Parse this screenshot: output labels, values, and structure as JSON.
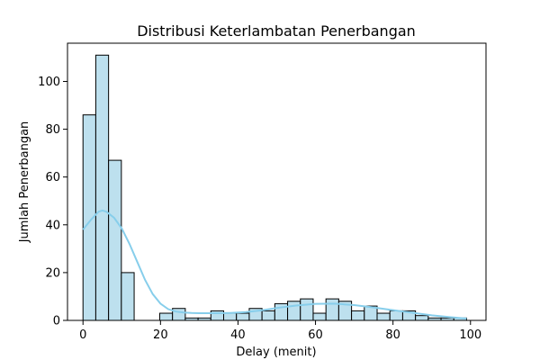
{
  "chart_data": {
    "type": "bar",
    "subtype": "histogram",
    "title": "Distribusi Keterlambatan Penerbangan",
    "xlabel": "Delay (menit)",
    "ylabel": "Jumlah Penerbangan",
    "xlim": [
      -4,
      104
    ],
    "ylim": [
      0,
      116
    ],
    "xticks": [
      0,
      20,
      40,
      60,
      80,
      100
    ],
    "yticks": [
      0,
      20,
      40,
      60,
      80,
      100
    ],
    "bin_width": 3.3,
    "bins_start": [
      0,
      3.3,
      6.6,
      9.9,
      19.8,
      23.1,
      26.4,
      29.7,
      33.0,
      36.3,
      39.6,
      42.9,
      46.2,
      49.5,
      52.8,
      56.1,
      59.4,
      62.7,
      66.0,
      69.3,
      72.6,
      75.9,
      79.2,
      82.5,
      85.8,
      89.1,
      92.4,
      95.7
    ],
    "counts": [
      86,
      111,
      67,
      20,
      3,
      5,
      1,
      1,
      4,
      3,
      3,
      5,
      4,
      7,
      8,
      9,
      3,
      9,
      8,
      4,
      6,
      3,
      4,
      4,
      2,
      1,
      1,
      1
    ],
    "kde": {
      "x": [
        0,
        2,
        4,
        5,
        6,
        8,
        10,
        12,
        14,
        16,
        18,
        20,
        22,
        24,
        26,
        28,
        30,
        34,
        38,
        42,
        46,
        50,
        55,
        60,
        65,
        70,
        75,
        80,
        85,
        90,
        95,
        99
      ],
      "y": [
        38,
        42,
        45.5,
        46,
        45.5,
        43,
        38.5,
        32,
        24.5,
        17,
        11,
        7,
        4.7,
        3.7,
        3.3,
        3.1,
        3,
        3,
        3.1,
        3.5,
        4.2,
        5.2,
        6.2,
        6.9,
        7,
        6.4,
        5.4,
        4.3,
        3.2,
        2.1,
        1.3,
        0.8
      ]
    },
    "grid": false,
    "colors": {
      "bar_fill": "#bde0ee",
      "bar_edge": "#000000",
      "kde_line": "#87ceeb"
    }
  }
}
